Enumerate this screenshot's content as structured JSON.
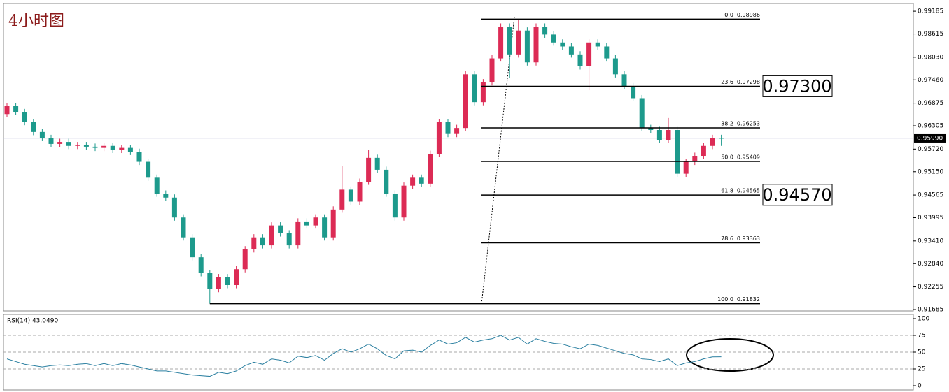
{
  "chart_data": {
    "type": "candlestick",
    "title": "4小时图",
    "up_color": "#dc2b55",
    "down_color": "#1d9a8c",
    "ylim": [
      0.9165,
      0.9938
    ],
    "yticks": [
      0.99185,
      0.98615,
      {
        "value": 0.9803,
        "label": "0.98030"
      },
      {
        "value": 0.9746,
        "label": "0.97460"
      },
      0.96875,
      0.96305,
      {
        "value": 0.9572,
        "label": "0.95720"
      },
      {
        "value": 0.9515,
        "label": "0.95150"
      },
      0.94565,
      0.93995,
      {
        "value": 0.9341,
        "label": "0.93410"
      },
      {
        "value": 0.9284,
        "label": "0.92840"
      },
      0.92255,
      0.91685
    ],
    "open": [
      0.966,
      0.968,
      0.9665,
      0.964,
      0.9615,
      0.96,
      0.9585,
      0.959,
      0.958,
      0.9582,
      0.9578,
      0.9575,
      0.958,
      0.957,
      0.9575,
      0.9565,
      0.954,
      0.95,
      0.946,
      0.945,
      0.94,
      0.935,
      0.93,
      0.926,
      0.922,
      0.925,
      0.923,
      0.927,
      0.932,
      0.935,
      0.933,
      0.938,
      0.936,
      0.933,
      0.939,
      0.938,
      0.94,
      0.935,
      0.942,
      0.947,
      0.944,
      0.949,
      0.955,
      0.952,
      0.946,
      0.94,
      0.948,
      0.95,
      0.9485,
      0.956,
      0.964,
      0.961,
      0.9625,
      0.976,
      0.969,
      0.974,
      0.98,
      0.988,
      0.981,
      0.987,
      0.979,
      0.988,
      0.986,
      0.984,
      0.983,
      0.981,
      0.978,
      0.984,
      0.983,
      0.98,
      0.976,
      0.973,
      0.97,
      0.9625,
      0.962,
      0.9595,
      0.962,
      0.951,
      0.954,
      0.9555,
      0.958,
      0.96
    ],
    "high": [
      0.9688,
      0.9688,
      0.9673,
      0.9648,
      0.9623,
      0.9608,
      0.9598,
      0.9598,
      0.959,
      0.959,
      0.9586,
      0.9588,
      0.9588,
      0.9583,
      0.9583,
      0.9573,
      0.9548,
      0.9508,
      0.9468,
      0.9458,
      0.9408,
      0.9358,
      0.9308,
      0.9268,
      0.9258,
      0.9258,
      0.9278,
      0.9328,
      0.9358,
      0.9358,
      0.9388,
      0.9388,
      0.9368,
      0.9398,
      0.9398,
      0.9408,
      0.9408,
      0.9428,
      0.953,
      0.9478,
      0.9498,
      0.957,
      0.9558,
      0.9528,
      0.9468,
      0.9488,
      0.9508,
      0.9508,
      0.9568,
      0.9648,
      0.9648,
      0.9633,
      0.9768,
      0.9768,
      0.9748,
      0.9808,
      0.9888,
      0.9888,
      0.98986,
      0.9878,
      0.9888,
      0.9888,
      0.9868,
      0.9848,
      0.9838,
      0.9818,
      0.9848,
      0.9848,
      0.9838,
      0.9808,
      0.9768,
      0.9738,
      0.9708,
      0.9633,
      0.9628,
      0.965,
      0.9628,
      0.9548,
      0.9563,
      0.9588,
      0.9608,
      0.9608
    ],
    "low": [
      0.9652,
      0.9657,
      0.9632,
      0.9607,
      0.9592,
      0.9577,
      0.9577,
      0.9572,
      0.9572,
      0.957,
      0.9567,
      0.9567,
      0.9562,
      0.9562,
      0.9557,
      0.9532,
      0.9492,
      0.9452,
      0.9442,
      0.9392,
      0.9342,
      0.9292,
      0.9252,
      0.91832,
      0.9212,
      0.9222,
      0.9222,
      0.9262,
      0.9312,
      0.9322,
      0.9322,
      0.9352,
      0.9322,
      0.9322,
      0.9372,
      0.9372,
      0.9342,
      0.9342,
      0.9412,
      0.9432,
      0.9432,
      0.9482,
      0.9512,
      0.9452,
      0.9392,
      0.9392,
      0.9472,
      0.9477,
      0.9477,
      0.9552,
      0.9602,
      0.9602,
      0.9617,
      0.9682,
      0.9682,
      0.9732,
      0.9792,
      0.975,
      0.9802,
      0.9782,
      0.9782,
      0.9852,
      0.9832,
      0.9822,
      0.9802,
      0.9772,
      0.972,
      0.9822,
      0.9792,
      0.9752,
      0.9722,
      0.9692,
      0.9617,
      0.9612,
      0.9587,
      0.9587,
      0.9502,
      0.9502,
      0.9532,
      0.9547,
      0.9572,
      0.958
    ],
    "close": [
      0.968,
      0.9665,
      0.964,
      0.9615,
      0.96,
      0.9585,
      0.959,
      0.958,
      0.9582,
      0.9578,
      0.9575,
      0.958,
      0.957,
      0.9575,
      0.9565,
      0.954,
      0.95,
      0.946,
      0.945,
      0.94,
      0.935,
      0.93,
      0.926,
      0.922,
      0.925,
      0.923,
      0.927,
      0.932,
      0.935,
      0.933,
      0.938,
      0.936,
      0.933,
      0.939,
      0.938,
      0.94,
      0.935,
      0.942,
      0.947,
      0.944,
      0.949,
      0.955,
      0.952,
      0.946,
      0.94,
      0.948,
      0.95,
      0.9485,
      0.956,
      0.964,
      0.961,
      0.9625,
      0.976,
      0.969,
      0.974,
      0.98,
      0.988,
      0.981,
      0.987,
      0.979,
      0.988,
      0.986,
      0.984,
      0.983,
      0.981,
      0.978,
      0.984,
      0.983,
      0.98,
      0.976,
      0.973,
      0.97,
      0.9625,
      0.962,
      0.9595,
      0.962,
      0.951,
      0.954,
      0.9555,
      0.958,
      0.96,
      0.9599
    ],
    "current_price": {
      "value": 0.9599,
      "label": "0.95990"
    },
    "fib_levels": [
      {
        "ratio": "0.0",
        "price": 0.98986
      },
      {
        "ratio": "23.6",
        "price": 0.97298
      },
      {
        "ratio": "38.2",
        "price": 0.96253
      },
      {
        "ratio": "50.0",
        "price": 0.95409
      },
      {
        "ratio": "61.8",
        "price": 0.94565
      },
      {
        "ratio": "78.6",
        "price": 0.93363
      },
      {
        "ratio": "100.0",
        "price": 0.91832
      }
    ],
    "annotations": [
      {
        "value": 0.973,
        "label": "0.97300"
      },
      {
        "value": 0.9457,
        "label": "0.94570"
      }
    ],
    "rsi": {
      "label": "RSI(14) 43.0490",
      "color": "#2a7fa0",
      "ylim": [
        0,
        100
      ],
      "yticks": [
        100,
        75,
        50,
        25,
        0
      ],
      "levels": [
        75,
        50,
        25
      ],
      "values": [
        40,
        36,
        32,
        30,
        28,
        30,
        31,
        30,
        32,
        33,
        30,
        33,
        30,
        33,
        31,
        28,
        25,
        22,
        22,
        20,
        18,
        16,
        15,
        14,
        20,
        18,
        22,
        30,
        35,
        32,
        40,
        38,
        34,
        44,
        42,
        45,
        38,
        48,
        55,
        50,
        55,
        62,
        55,
        45,
        40,
        52,
        53,
        50,
        60,
        68,
        62,
        64,
        72,
        65,
        68,
        70,
        75,
        68,
        72,
        62,
        70,
        66,
        63,
        62,
        58,
        55,
        62,
        60,
        56,
        52,
        48,
        46,
        40,
        39,
        36,
        40,
        30,
        34,
        36,
        40,
        43,
        43.049
      ]
    }
  }
}
